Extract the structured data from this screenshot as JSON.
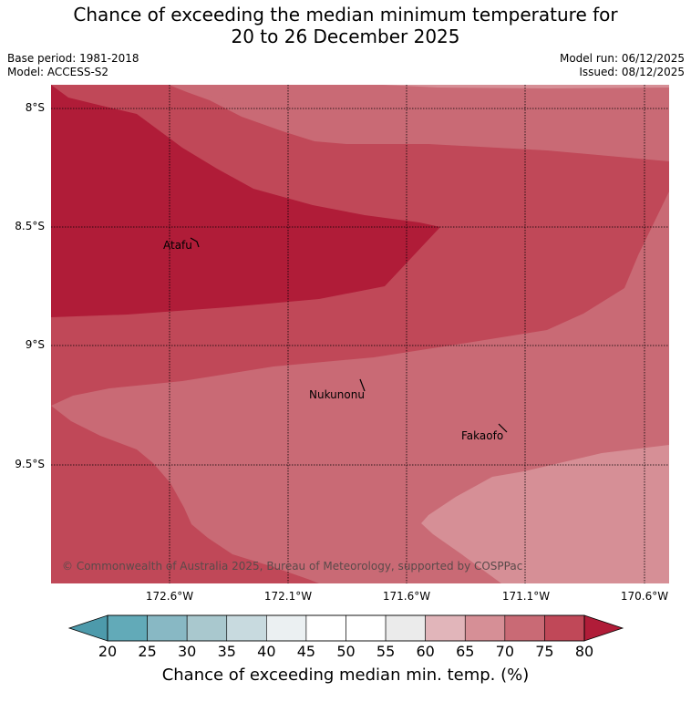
{
  "title": {
    "line1": "Chance of exceeding the median minimum temperature for",
    "line2": "20 to 26 December 2025"
  },
  "meta": {
    "base_period": "Base period: 1981-2018",
    "model": "Model: ACCESS-S2",
    "model_run": "Model run: 06/12/2025",
    "issued": "Issued: 08/12/2025"
  },
  "map": {
    "lat_labels": [
      "8°S",
      "8.5°S",
      "9°S",
      "9.5°S"
    ],
    "lon_labels": [
      "172.6°W",
      "172.1°W",
      "171.6°W",
      "171.1°W",
      "170.6°W"
    ],
    "places": [
      "Atafu",
      "Nukunonu",
      "Fakaofo"
    ],
    "copyright": "© Commonwealth of Australia 2025, Bureau of Meteorology, supported by COSPPac"
  },
  "colors": {
    "c_80plus": "#b01c38",
    "c_75_80": "#c04858",
    "c_70_75": "#c96a75",
    "c_65_70": "#d68f96"
  },
  "colorbar": {
    "ticks": [
      "20",
      "25",
      "30",
      "35",
      "40",
      "45",
      "50",
      "55",
      "60",
      "65",
      "70",
      "75",
      "80"
    ],
    "colors": [
      "#62aab8",
      "#88b8c4",
      "#a9c8ce",
      "#c8dadf",
      "#ebf0f2",
      "#ffffff",
      "#ffffff",
      "#ebebeb",
      "#e1b5ba",
      "#d68f96",
      "#c96a75",
      "#c04858"
    ],
    "under_color": "#4d9aab",
    "over_color": "#b01c38",
    "label": "Chance of exceeding median min. temp. (%)"
  }
}
